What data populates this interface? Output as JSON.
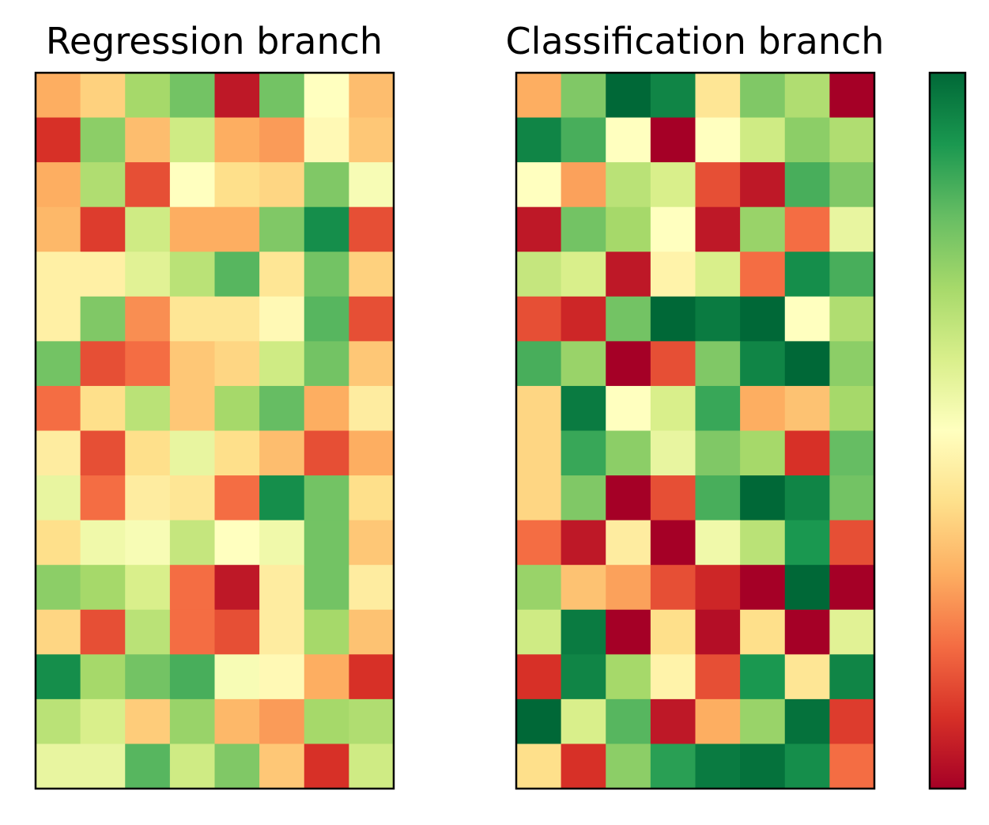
{
  "chart_data": [
    {
      "type": "heatmap",
      "title": "Regression branch",
      "rows": 16,
      "cols": 8,
      "colormap": "RdYlGn",
      "value_range": [
        0,
        1
      ],
      "values": [
        [
          0.3,
          0.37,
          0.7,
          0.78,
          0.05,
          0.78,
          0.5,
          0.33
        ],
        [
          0.1,
          0.74,
          0.33,
          0.62,
          0.3,
          0.27,
          0.48,
          0.35
        ],
        [
          0.3,
          0.68,
          0.15,
          0.5,
          0.4,
          0.38,
          0.76,
          0.52
        ],
        [
          0.32,
          0.12,
          0.62,
          0.3,
          0.3,
          0.76,
          0.92,
          0.15
        ],
        [
          0.45,
          0.45,
          0.58,
          0.66,
          0.82,
          0.42,
          0.78,
          0.37
        ],
        [
          0.45,
          0.76,
          0.25,
          0.42,
          0.42,
          0.48,
          0.82,
          0.15
        ],
        [
          0.78,
          0.15,
          0.2,
          0.35,
          0.38,
          0.62,
          0.78,
          0.35
        ],
        [
          0.2,
          0.4,
          0.66,
          0.35,
          0.7,
          0.8,
          0.3,
          0.44
        ],
        [
          0.44,
          0.15,
          0.4,
          0.56,
          0.4,
          0.33,
          0.15,
          0.3
        ],
        [
          0.56,
          0.2,
          0.44,
          0.42,
          0.2,
          0.92,
          0.78,
          0.4
        ],
        [
          0.4,
          0.54,
          0.52,
          0.64,
          0.5,
          0.54,
          0.78,
          0.35
        ],
        [
          0.74,
          0.7,
          0.6,
          0.2,
          0.05,
          0.44,
          0.78,
          0.44
        ],
        [
          0.38,
          0.15,
          0.66,
          0.2,
          0.15,
          0.44,
          0.7,
          0.34
        ],
        [
          0.92,
          0.7,
          0.78,
          0.84,
          0.52,
          0.48,
          0.3,
          0.1
        ],
        [
          0.66,
          0.6,
          0.36,
          0.72,
          0.32,
          0.27,
          0.7,
          0.68
        ],
        [
          0.56,
          0.56,
          0.82,
          0.62,
          0.76,
          0.35,
          0.1,
          0.62
        ]
      ]
    },
    {
      "type": "heatmap",
      "title": "Classification branch",
      "rows": 16,
      "cols": 8,
      "colormap": "RdYlGn",
      "value_range": [
        0,
        1
      ],
      "values": [
        [
          0.3,
          0.76,
          1.0,
          0.94,
          0.42,
          0.76,
          0.68,
          0.0
        ],
        [
          0.94,
          0.84,
          0.5,
          0.0,
          0.5,
          0.62,
          0.74,
          0.68
        ],
        [
          0.5,
          0.28,
          0.66,
          0.6,
          0.15,
          0.05,
          0.84,
          0.76
        ],
        [
          0.05,
          0.78,
          0.7,
          0.5,
          0.05,
          0.72,
          0.2,
          0.56
        ],
        [
          0.64,
          0.6,
          0.05,
          0.46,
          0.6,
          0.2,
          0.92,
          0.84
        ],
        [
          0.15,
          0.08,
          0.78,
          1.0,
          0.96,
          1.0,
          0.5,
          0.68
        ],
        [
          0.84,
          0.72,
          0.0,
          0.15,
          0.76,
          0.94,
          1.0,
          0.74
        ],
        [
          0.38,
          0.96,
          0.5,
          0.6,
          0.86,
          0.3,
          0.34,
          0.7
        ],
        [
          0.38,
          0.86,
          0.74,
          0.56,
          0.76,
          0.7,
          0.1,
          0.8
        ],
        [
          0.38,
          0.76,
          0.0,
          0.15,
          0.84,
          1.0,
          0.94,
          0.78
        ],
        [
          0.2,
          0.05,
          0.44,
          0.0,
          0.54,
          0.66,
          0.9,
          0.15
        ],
        [
          0.72,
          0.34,
          0.28,
          0.15,
          0.08,
          0.0,
          1.0,
          0.0
        ],
        [
          0.62,
          0.96,
          0.0,
          0.4,
          0.03,
          0.4,
          0.0,
          0.58
        ],
        [
          0.1,
          0.94,
          0.7,
          0.46,
          0.15,
          0.9,
          0.42,
          0.94
        ],
        [
          1.0,
          0.6,
          0.82,
          0.05,
          0.3,
          0.72,
          0.98,
          0.12
        ],
        [
          0.4,
          0.1,
          0.74,
          0.88,
          0.96,
          0.98,
          0.92,
          0.2
        ]
      ]
    }
  ],
  "colorbar": {
    "colormap": "RdYlGn",
    "range": [
      0,
      1
    ],
    "tick_labels": "none"
  }
}
